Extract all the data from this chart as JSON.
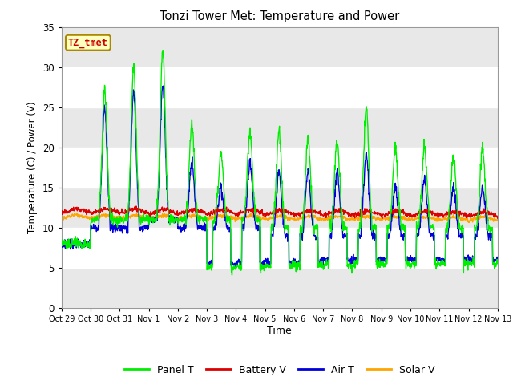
{
  "title": "Tonzi Tower Met: Temperature and Power",
  "xlabel": "Time",
  "ylabel": "Temperature (C) / Power (V)",
  "annotation": "TZ_tmet",
  "ylim": [
    0,
    35
  ],
  "yticks": [
    0,
    5,
    10,
    15,
    20,
    25,
    30,
    35
  ],
  "xtick_labels": [
    "Oct 29",
    "Oct 30",
    "Oct 31",
    "Nov 1",
    "Nov 2",
    "Nov 3",
    "Nov 4",
    "Nov 5",
    "Nov 6",
    "Nov 7",
    "Nov 8",
    "Nov 9",
    "Nov 10",
    "Nov 11",
    "Nov 12",
    "Nov 13"
  ],
  "colors": {
    "panel_t": "#00EE00",
    "battery_v": "#DD0000",
    "air_t": "#0000DD",
    "solar_v": "#FFA500"
  },
  "legend_labels": [
    "Panel T",
    "Battery V",
    "Air T",
    "Solar V"
  ],
  "bg_color": "#E8E8E8",
  "grid_color": "#FFFFFF",
  "band_color": "#D0D0D0"
}
